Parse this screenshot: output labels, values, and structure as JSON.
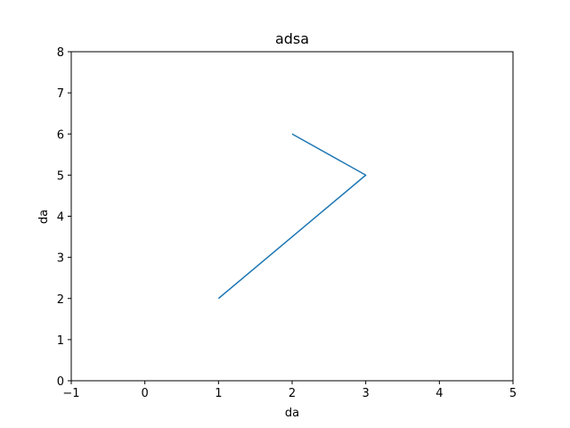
{
  "chart_data": {
    "type": "line",
    "title": "adsa",
    "xlabel": "da",
    "ylabel": "da",
    "xlim": [
      -1,
      5
    ],
    "ylim": [
      0,
      8
    ],
    "xticks": [
      -1,
      0,
      1,
      2,
      3,
      4,
      5
    ],
    "yticks": [
      0,
      1,
      2,
      3,
      4,
      5,
      6,
      7,
      8
    ],
    "xtick_labels": [
      "−1",
      "0",
      "1",
      "2",
      "3",
      "4",
      "5"
    ],
    "ytick_labels": [
      "0",
      "1",
      "2",
      "3",
      "4",
      "5",
      "6",
      "7",
      "8"
    ],
    "grid": false,
    "series": [
      {
        "x": [
          1,
          3,
          2
        ],
        "y": [
          2,
          5,
          6
        ],
        "color": "#1f77b4"
      }
    ]
  }
}
